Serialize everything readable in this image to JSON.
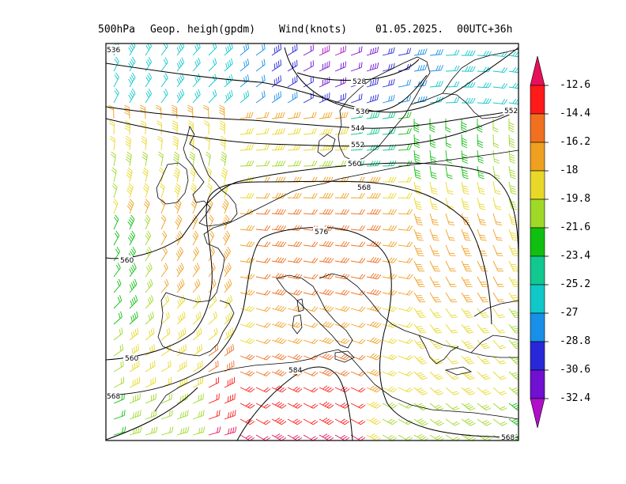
{
  "header": {
    "level": "500hPa",
    "field": "Geop. heigh(gpdm)",
    "wind": "Wind(knots)",
    "date": "01.05.2025.",
    "run": "00UTC+36h"
  },
  "contours": [
    {
      "label": "528"
    },
    {
      "label": "536"
    },
    {
      "label": "544"
    },
    {
      "label": "552"
    },
    {
      "label": "560"
    },
    {
      "label": "568"
    },
    {
      "label": "576"
    },
    {
      "label": "584"
    }
  ],
  "contour_edge_labels": {
    "left_top": "536",
    "right_552": "552",
    "left_560": "560",
    "left_560_low": "560",
    "left_568": "568",
    "bottom_568": "568"
  },
  "colorbar": {
    "ticks": [
      "-12.6",
      "-14.4",
      "-16.2",
      "-18",
      "-19.8",
      "-21.6",
      "-23.4",
      "-25.2",
      "-27",
      "-28.8",
      "-30.6",
      "-32.4"
    ],
    "colors": [
      "#e8105a",
      "#ff1a1a",
      "#f07020",
      "#f0a020",
      "#e8d828",
      "#a0d828",
      "#10c010",
      "#10c890",
      "#10c8c8",
      "#1890e8",
      "#2828d8",
      "#7010d0",
      "#b010c8"
    ]
  }
}
